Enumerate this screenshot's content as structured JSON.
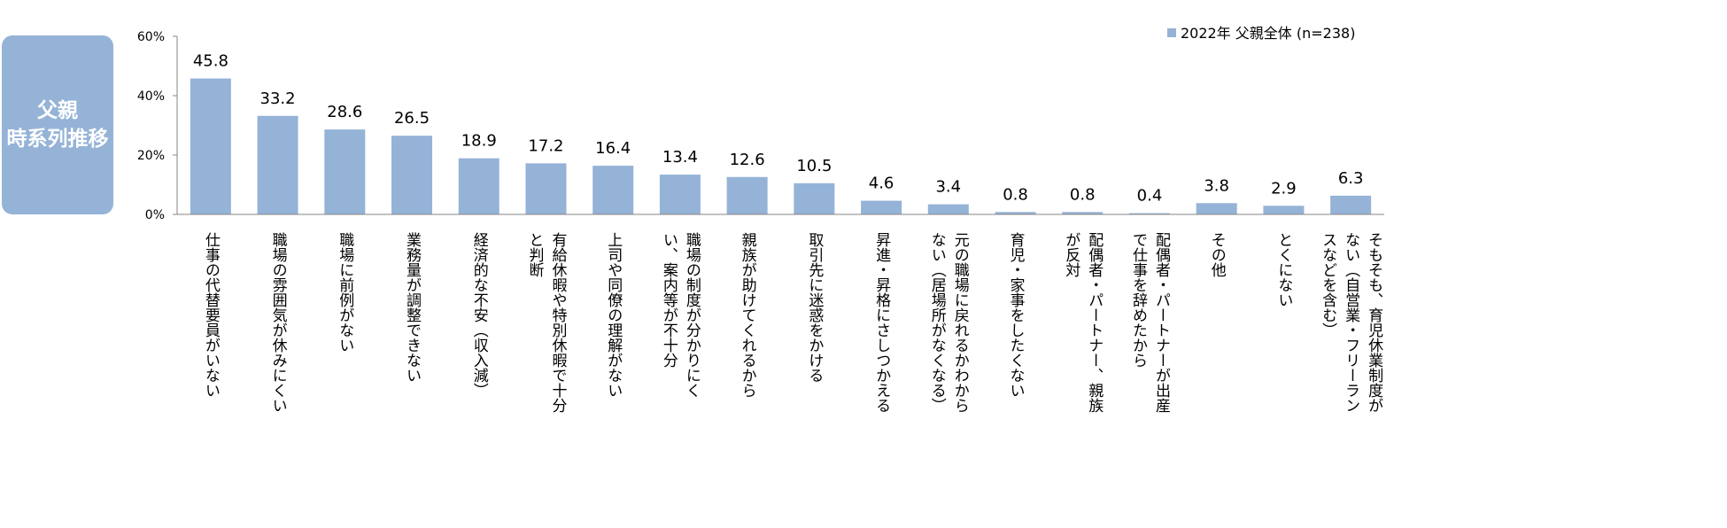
{
  "side_badge": {
    "line1": "父親",
    "line2": "時系列推移"
  },
  "chart_data": {
    "type": "bar",
    "ylim": [
      0,
      60
    ],
    "yticks": [
      {
        "value": 0,
        "label": "0%"
      },
      {
        "value": 20,
        "label": "20%"
      },
      {
        "value": 40,
        "label": "40%"
      },
      {
        "value": 60,
        "label": "60%"
      }
    ],
    "legend": {
      "label": "2022年  父親全体 (n=238)",
      "position": "top-right"
    },
    "series": [
      {
        "name": "2022年  父親全体 (n=238)",
        "color": "#95b3d7",
        "values": [
          45.8,
          33.2,
          28.6,
          26.5,
          18.9,
          17.2,
          16.4,
          13.4,
          12.6,
          10.5,
          4.6,
          3.4,
          0.8,
          0.8,
          0.4,
          3.8,
          2.9,
          6.3
        ]
      }
    ],
    "value_labels": [
      "45.8",
      "33.2",
      "28.6",
      "26.5",
      "18.9",
      "17.2",
      "16.4",
      "13.4",
      "12.6",
      "10.5",
      "4.6",
      "3.4",
      "0.8",
      "0.8",
      "0.4",
      "3.8",
      "2.9",
      "6.3"
    ],
    "categories": [
      [
        "仕事の代替要員がいない"
      ],
      [
        "職場の雰囲気が休みにくい"
      ],
      [
        "職場に前例がない"
      ],
      [
        "業務量が調整できない"
      ],
      [
        "経済的な不安（収入減）"
      ],
      [
        "有給休暇や特別休暇で十分",
        "と判断"
      ],
      [
        "上司や同僚の理解がない"
      ],
      [
        "職場の制度が分かりにく",
        "い、案内等が不十分"
      ],
      [
        "親族が助けてくれるから"
      ],
      [
        "取引先に迷惑をかける"
      ],
      [
        "昇進・昇格にさしつかえる"
      ],
      [
        "元の職場に戻れるかわから",
        "ない（居場所がなくなる）"
      ],
      [
        "育児・家事をしたくない"
      ],
      [
        "配偶者・パートナー、親族",
        "が反対"
      ],
      [
        "配偶者・パートナーが出産",
        "で仕事を辞めたから"
      ],
      [
        "その他"
      ],
      [
        "とくにない"
      ],
      [
        "そもそも、育児休業制度が",
        "ない（自営業・フリーラン",
        "スなどを含む）"
      ]
    ]
  }
}
